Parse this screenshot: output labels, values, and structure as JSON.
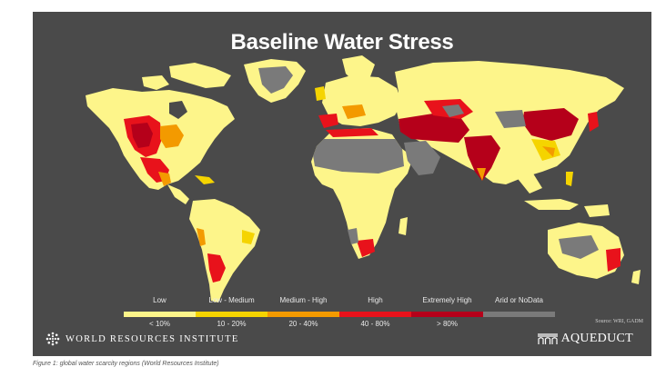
{
  "map": {
    "title": "Baseline Water Stress",
    "background_color": "#4a4a4a",
    "legend": [
      {
        "label": "Low",
        "range": "< 10%",
        "color": "#fdf58a"
      },
      {
        "label": "Low - Medium",
        "range": "10 - 20%",
        "color": "#f5d400"
      },
      {
        "label": "Medium - High",
        "range": "20 - 40%",
        "color": "#f39a00"
      },
      {
        "label": "High",
        "range": "40 - 80%",
        "color": "#e8121b"
      },
      {
        "label": "Extremely High",
        "range": "> 80%",
        "color": "#b5001a"
      },
      {
        "label": "Arid or NoData",
        "range": "",
        "color": "#7a7a7a"
      }
    ],
    "source": "Source: WRI, GADM",
    "regions": [
      {
        "name": "North America",
        "level": "Low"
      },
      {
        "name": "South America",
        "level": "Low"
      },
      {
        "name": "Africa",
        "level": "Low"
      },
      {
        "name": "Europe",
        "level": "Low"
      },
      {
        "name": "Asia",
        "level": "Low"
      },
      {
        "name": "Australia",
        "level": "Low"
      },
      {
        "name": "Greenland",
        "level": "Arid or NoData"
      },
      {
        "name": "Sahara",
        "level": "Arid or NoData"
      },
      {
        "name": "Arabian Peninsula",
        "level": "Arid or NoData"
      },
      {
        "name": "Western United States",
        "level": "Extremely High"
      },
      {
        "name": "Middle East & Central Asia",
        "level": "Extremely High"
      },
      {
        "name": "India",
        "level": "Extremely High"
      },
      {
        "name": "Northern China",
        "level": "Extremely High"
      },
      {
        "name": "North Africa coast",
        "level": "High"
      },
      {
        "name": "Southern Africa",
        "level": "High"
      },
      {
        "name": "Chile & Argentina",
        "level": "High"
      },
      {
        "name": "Eastern Australia",
        "level": "High"
      }
    ]
  },
  "branding": {
    "left_logo": "WORLD RESOURCES INSTITUTE",
    "left_logo_icon": "wri-star-icon",
    "right_logo": "AQUEDUCT",
    "right_logo_icon": "aqueduct-arches-icon"
  },
  "caption": "Figure 1: global water scarcity regions (World Resources Institute)"
}
